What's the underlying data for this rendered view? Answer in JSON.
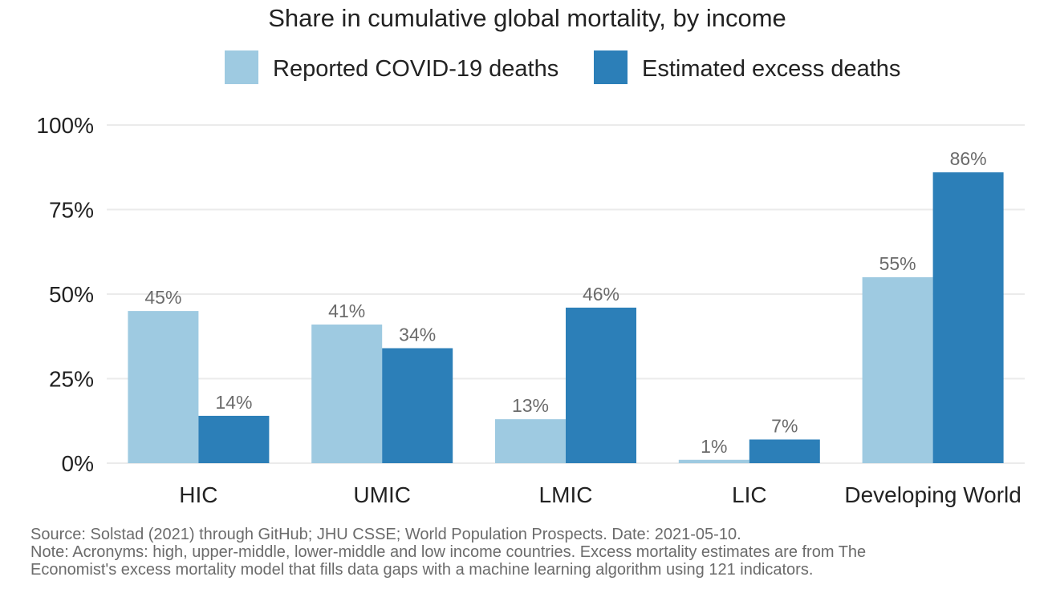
{
  "chart_data": {
    "type": "bar",
    "title": "Share in cumulative global mortality, by income",
    "categories": [
      "HIC",
      "UMIC",
      "LMIC",
      "LIC",
      "Developing World"
    ],
    "series": [
      {
        "name": "Reported COVID-19 deaths",
        "color": "#9ecae1",
        "values": [
          45,
          41,
          13,
          1,
          55
        ],
        "labels": [
          "45%",
          "41%",
          "13%",
          "1%",
          "55%"
        ]
      },
      {
        "name": "Estimated excess deaths",
        "color": "#2c7fb8",
        "values": [
          14,
          34,
          46,
          7,
          86
        ],
        "labels": [
          "14%",
          "34%",
          "46%",
          "7%",
          "86%"
        ]
      }
    ],
    "ylim": [
      0,
      100
    ],
    "yticks": [
      0,
      25,
      50,
      75,
      100
    ],
    "ytick_labels": [
      "0%",
      "25%",
      "50%",
      "75%",
      "100%"
    ],
    "xlabel": "",
    "ylabel": "",
    "grid": true,
    "legend_position": "top"
  },
  "footer": {
    "source": "Source: Solstad (2021) through GitHub; JHU CSSE; World Population Prospects. Date: 2021-05-10.",
    "note_line1": "Note: Acronyms: high, upper-middle, lower-middle and low income countries. Excess mortality estimates are from The",
    "note_line2": "Economist's excess mortality model that fills data gaps with a machine learning algorithm using 121 indicators."
  }
}
